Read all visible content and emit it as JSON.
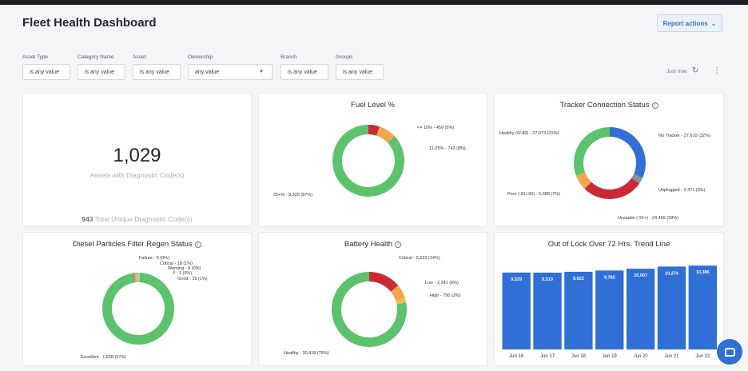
{
  "title": "Fleet Health Dashboard",
  "report_actions": "Report actions",
  "filters": [
    {
      "label": "Asset Type",
      "value": "is any value"
    },
    {
      "label": "Category Name",
      "value": "is any value"
    },
    {
      "label": "Asset",
      "value": "is any value"
    },
    {
      "label": "Ownership",
      "value": "any value"
    },
    {
      "label": "Branch",
      "value": "is any value"
    },
    {
      "label": "Groups",
      "value": "is any value"
    }
  ],
  "refresh_text": "Just now",
  "summary": {
    "count": "1,029",
    "count_label": "Assets with Diagnostic Code(s)",
    "unique_count": "943",
    "unique_label": "Total Unique Diagnostic Code(s)"
  },
  "colors": {
    "green": "#5cc26b",
    "red": "#c92a33",
    "orange": "#f2a54a",
    "blue": "#2f6fd6",
    "grey": "#8a8f98",
    "lightgreen": "#a8dcae",
    "lightorange": "#f7c98e",
    "yellow": "#f0c24a"
  },
  "fuel": {
    "title": "Fuel Level %",
    "segments": [
      {
        "label": "<= 10% - 459 (5%)",
        "value": 5,
        "color": "#c92a33"
      },
      {
        "label": "11-25% - 743 (8%)",
        "value": 8,
        "color": "#f2a54a"
      },
      {
        "label": "25+% - 8,325 (87%)",
        "value": 87,
        "color": "#5cc26b"
      }
    ]
  },
  "tracker": {
    "title": "Tracker Connection Status",
    "segments": [
      {
        "label": "No Tracker - 27,610 (32%)",
        "value": 32,
        "color": "#2f6fd6"
      },
      {
        "label": "Unplugged - 2,471 (3%)",
        "value": 3,
        "color": "#8a8f98"
      },
      {
        "label": "Unstable (-91+) - 24,455 (28%)",
        "value": 28,
        "color": "#c92a33"
      },
      {
        "label": "Poor (-81/-90) - 5,688 (7%)",
        "value": 7,
        "color": "#f2a54a"
      },
      {
        "label": "Healthy (0/-80) - 27,073 (31%)",
        "value": 31,
        "color": "#5cc26b"
      }
    ]
  },
  "dpf": {
    "title": "Diesel Particles Filter Regen Status",
    "segments": [
      {
        "label": "Failure - 5 (0%)",
        "value": 0.3,
        "color": "#c92a33"
      },
      {
        "label": "Critical - 18 (1%)",
        "value": 1,
        "color": "#f2a54a"
      },
      {
        "label": "Warning - 8 (0%)",
        "value": 0.4,
        "color": "#f7c98e"
      },
      {
        "label": "// - 1 (0%)",
        "value": 0.2,
        "color": "#2f6fd6"
      },
      {
        "label": "Good - 15 (1%)",
        "value": 1,
        "color": "#a8dcae"
      },
      {
        "label": "Excellent - 1,828 (97%)",
        "value": 97.1,
        "color": "#5cc26b"
      }
    ]
  },
  "battery": {
    "title": "Battery Health",
    "segments": [
      {
        "label": "Critical - 5,622 (14%)",
        "value": 14,
        "color": "#c92a33"
      },
      {
        "label": "Low - 2,241 (6%)",
        "value": 6,
        "color": "#f2a54a"
      },
      {
        "label": "High - 790 (2%)",
        "value": 2,
        "color": "#f0c24a"
      },
      {
        "label": "Healthy - 30,418 (78%)",
        "value": 78,
        "color": "#5cc26b"
      }
    ]
  },
  "chart_data": {
    "type": "bar",
    "title": "Out of Lock Over 72 Hrs. Trend Line",
    "categories": [
      "Jun 16",
      "Jun 17",
      "Jun 18",
      "Jun 19",
      "Jun 20",
      "Jun 21",
      "Jun 22"
    ],
    "values": [
      9529,
      9519,
      9622,
      9782,
      10007,
      10274,
      10386
    ],
    "value_labels": [
      "9,529",
      "9,519",
      "9,622",
      "9,782",
      "10,007",
      "10,274",
      "10,386"
    ],
    "ylim": [
      0,
      11400
    ],
    "xlabel": "",
    "ylabel": ""
  }
}
